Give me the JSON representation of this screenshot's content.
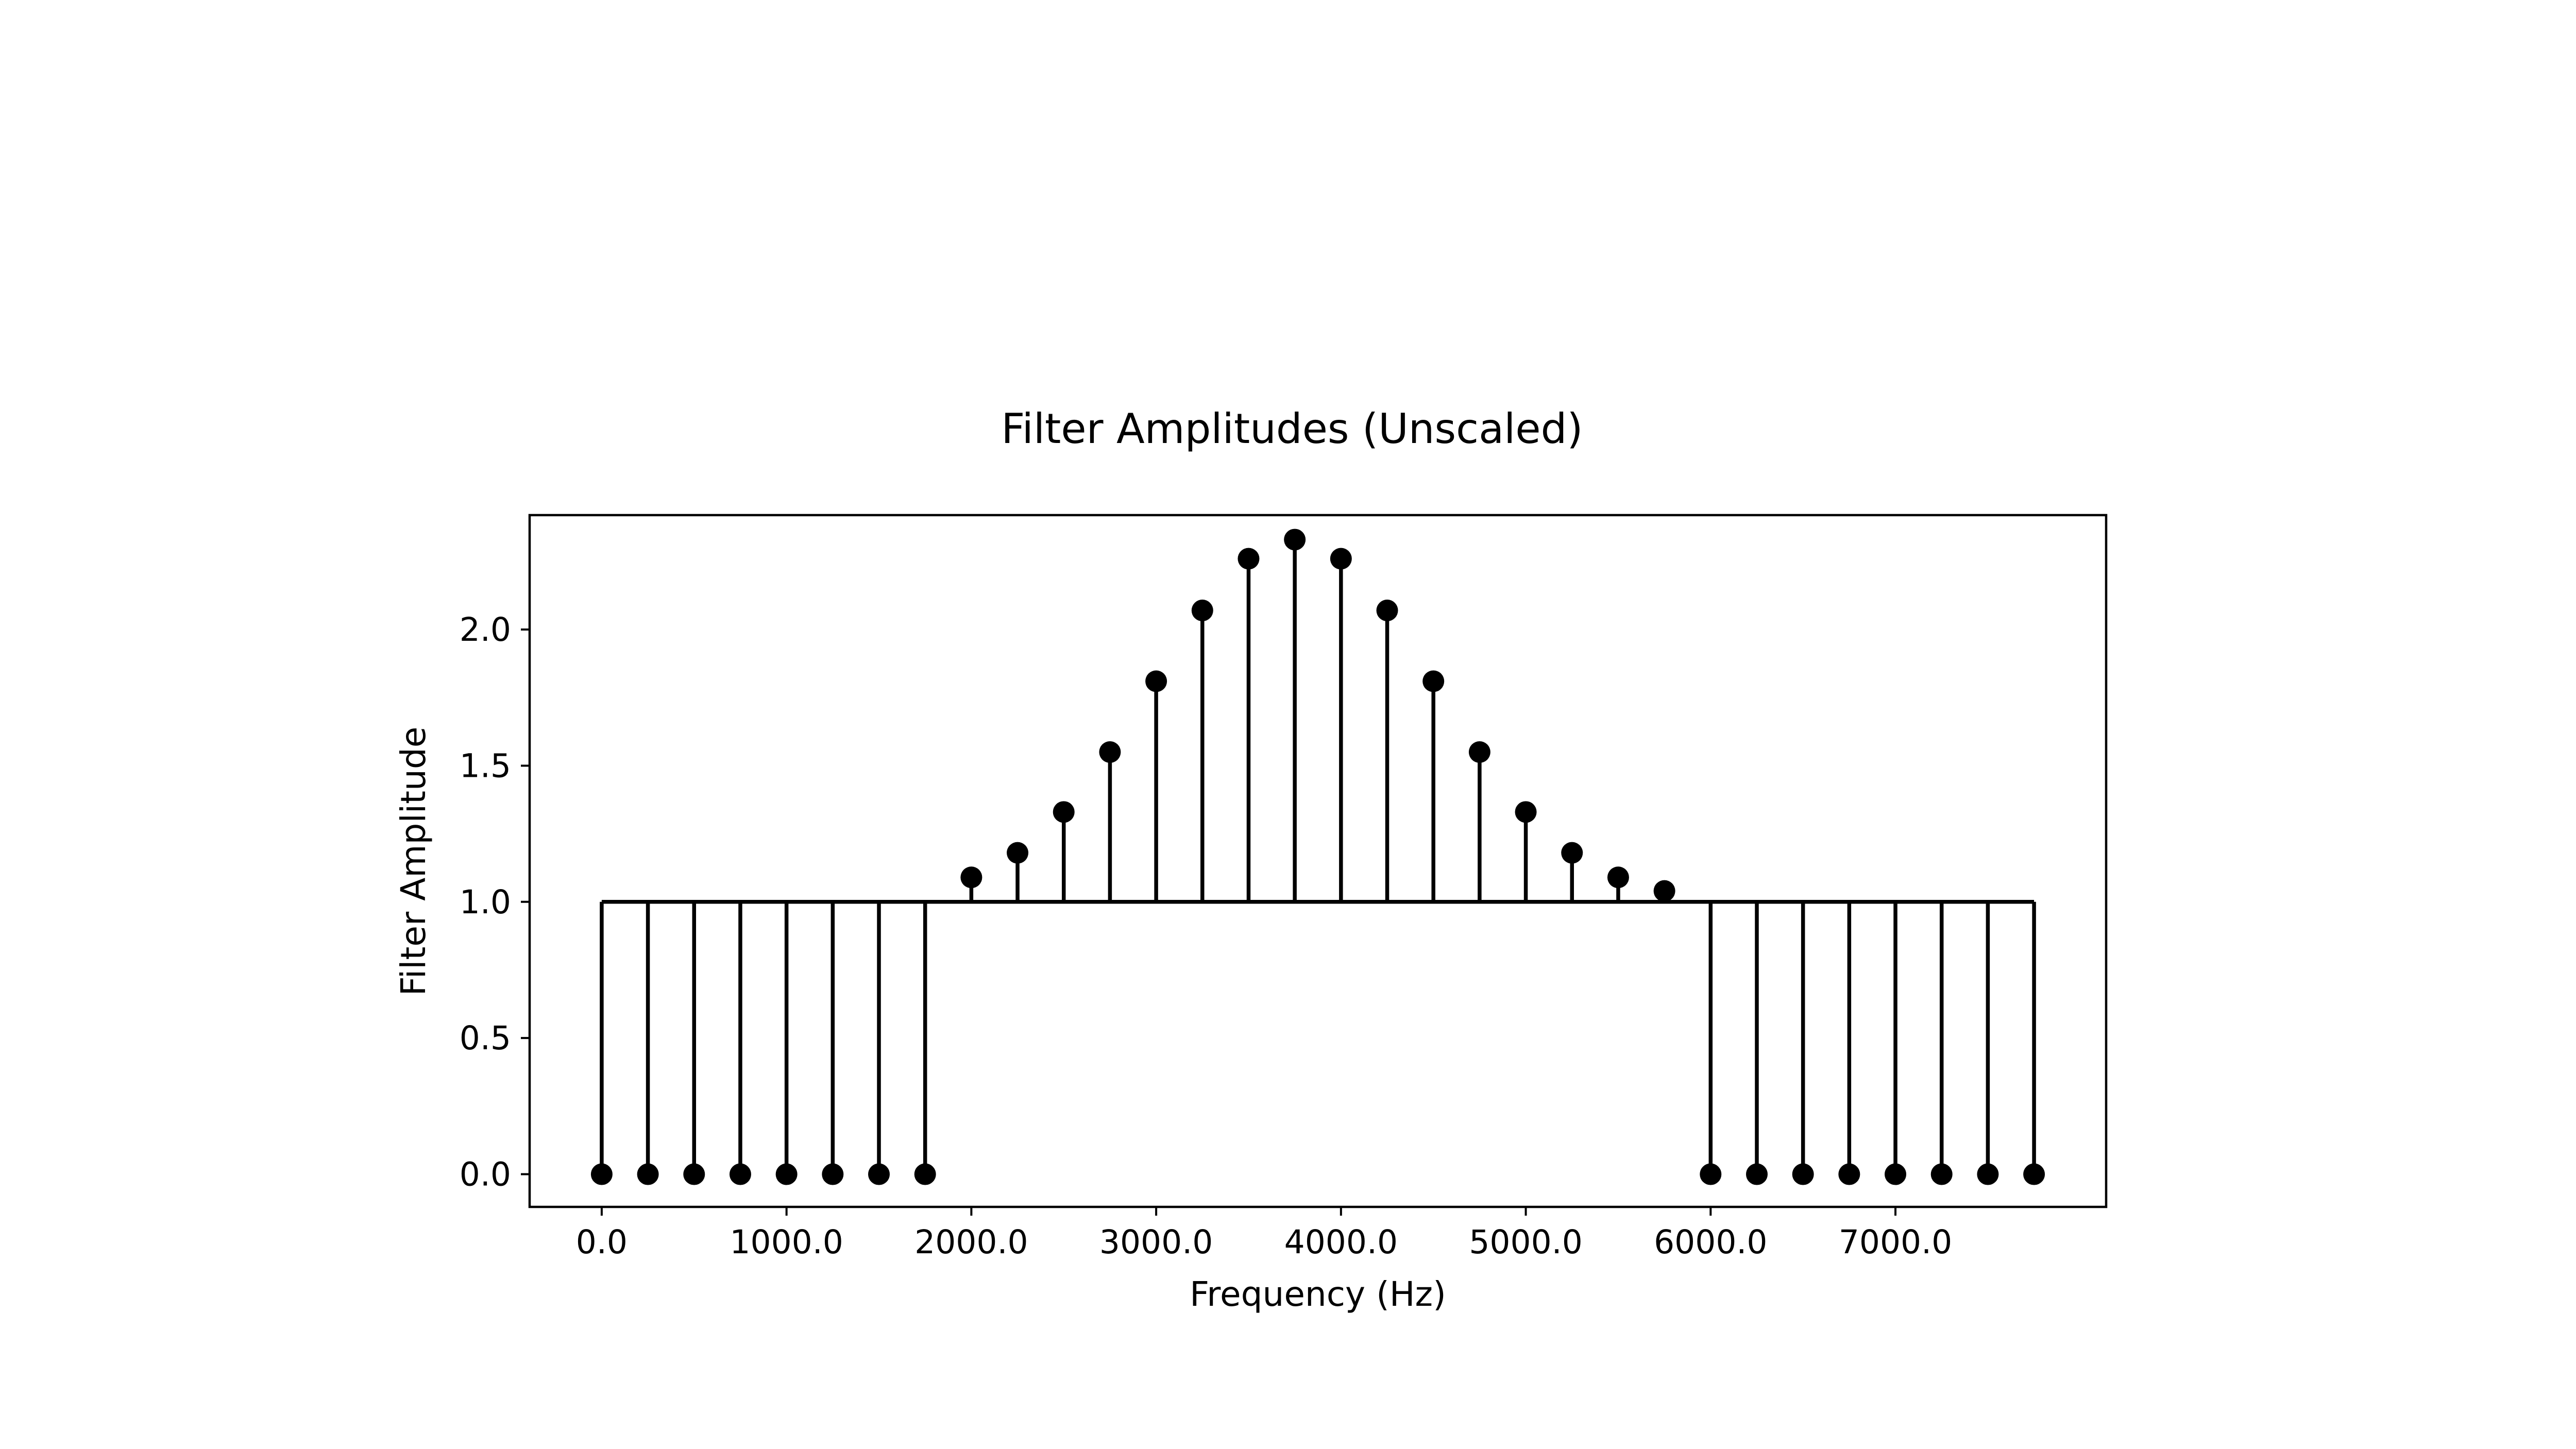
{
  "chart_data": {
    "type": "stem",
    "title": "Filter Amplitudes (Unscaled)",
    "xlabel": "Frequency (Hz)",
    "ylabel": "Filter Amplitude",
    "baseline": 1.0,
    "xlim": [
      -390,
      8140
    ],
    "ylim": [
      -0.12,
      2.42
    ],
    "x_ticks": [
      0,
      1000,
      2000,
      3000,
      4000,
      5000,
      6000,
      7000
    ],
    "x_tick_labels": [
      "0.0",
      "1000.0",
      "2000.0",
      "3000.0",
      "4000.0",
      "5000.0",
      "6000.0",
      "7000.0"
    ],
    "y_ticks": [
      0,
      0.5,
      1,
      1.5,
      2
    ],
    "y_tick_labels": [
      "0.0",
      "0.5",
      "1.0",
      "1.5",
      "2.0"
    ],
    "grid": false,
    "marker_color": "#000000",
    "stem_color": "#000000",
    "x": [
      0,
      250,
      500,
      750,
      1000,
      1250,
      1500,
      1750,
      2000,
      2250,
      2500,
      2750,
      3000,
      3250,
      3500,
      3750,
      4000,
      4250,
      4500,
      4750,
      5000,
      5250,
      5500,
      5750,
      6000,
      6250,
      6500,
      6750,
      7000,
      7250,
      7500,
      7750
    ],
    "values": [
      0,
      0,
      0,
      0,
      0,
      0,
      0,
      0,
      1.09,
      1.18,
      1.33,
      1.55,
      1.81,
      2.07,
      2.26,
      2.33,
      2.26,
      2.07,
      1.81,
      1.55,
      1.33,
      1.18,
      1.09,
      1.04,
      0,
      0,
      0,
      0,
      0,
      0,
      0,
      0
    ]
  }
}
